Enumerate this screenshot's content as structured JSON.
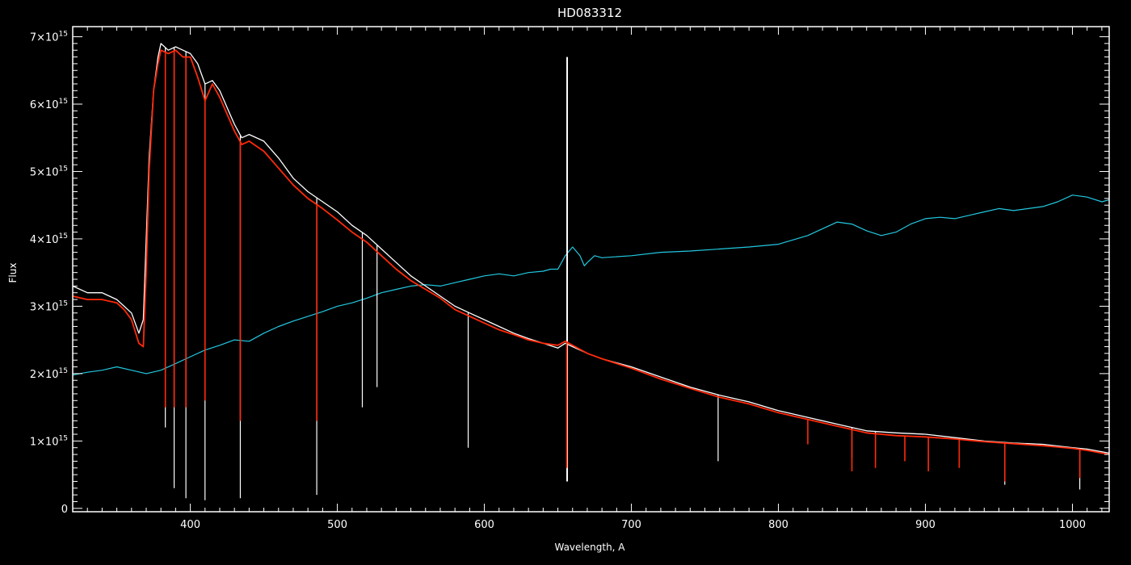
{
  "chart_data": {
    "type": "line",
    "title": "HD083312",
    "xlabel": "Wavelength, A",
    "ylabel": "Flux",
    "xlim": [
      320,
      1025
    ],
    "ylim": [
      -50000000000000.0,
      7150000000000000.0
    ],
    "x_ticks": [
      400,
      500,
      600,
      700,
      800,
      900,
      1000
    ],
    "x_tick_labels": [
      "400",
      "500",
      "600",
      "700",
      "800",
      "900",
      "1000"
    ],
    "y_ticks": [
      0,
      1000000000000000.0,
      2000000000000000.0,
      3000000000000000.0,
      4000000000000000.0,
      5000000000000000.0,
      6000000000000000.0,
      7000000000000000.0
    ],
    "y_tick_labels": [
      {
        "mantissa": "0",
        "exp": ""
      },
      {
        "mantissa": "1×10",
        "exp": "15"
      },
      {
        "mantissa": "2×10",
        "exp": "15"
      },
      {
        "mantissa": "3×10",
        "exp": "15"
      },
      {
        "mantissa": "4×10",
        "exp": "15"
      },
      {
        "mantissa": "5×10",
        "exp": "15"
      },
      {
        "mantissa": "6×10",
        "exp": "15"
      },
      {
        "mantissa": "7×10",
        "exp": "15"
      }
    ],
    "grid": false,
    "colors": {
      "background": "#000000",
      "axes": "#ffffff",
      "observed": "#ffffff",
      "model": "#ff2a0a",
      "comparison": "#22c8e0"
    },
    "series": [
      {
        "key": "observed",
        "x": [
          320,
          330,
          340,
          350,
          360,
          365,
          368,
          370,
          372,
          375,
          378,
          380,
          385,
          390,
          395,
          400,
          405,
          410,
          415,
          420,
          425,
          430,
          435,
          440,
          450,
          460,
          470,
          480,
          490,
          500,
          510,
          520,
          530,
          540,
          550,
          560,
          570,
          580,
          590,
          600,
          610,
          620,
          630,
          640,
          650,
          655,
          660,
          670,
          680,
          700,
          720,
          740,
          760,
          780,
          800,
          820,
          840,
          860,
          880,
          900,
          920,
          940,
          960,
          980,
          1000,
          1010,
          1025
        ],
        "y": [
          3300000000000000.0,
          3200000000000000.0,
          3200000000000000.0,
          3100000000000000.0,
          2900000000000000.0,
          2600000000000000.0,
          2800000000000000.0,
          4000000000000000.0,
          5200000000000000.0,
          6200000000000000.0,
          6700000000000000.0,
          6900000000000000.0,
          6800000000000000.0,
          6850000000000000.0,
          6800000000000000.0,
          6750000000000000.0,
          6600000000000000.0,
          6300000000000000.0,
          6350000000000000.0,
          6200000000000000.0,
          5950000000000000.0,
          5700000000000000.0,
          5500000000000000.0,
          5550000000000000.0,
          5450000000000000.0,
          5200000000000000.0,
          4900000000000000.0,
          4700000000000000.0,
          4550000000000000.0,
          4400000000000000.0,
          4200000000000000.0,
          4050000000000000.0,
          3850000000000000.0,
          3650000000000000.0,
          3450000000000000.0,
          3300000000000000.0,
          3150000000000000.0,
          3000000000000000.0,
          2900000000000000.0,
          2800000000000000.0,
          2700000000000000.0,
          2600000000000000.0,
          2520000000000000.0,
          2450000000000000.0,
          2380000000000000.0,
          2450000000000000.0,
          2400000000000000.0,
          2300000000000000.0,
          2220000000000000.0,
          2100000000000000.0,
          1950000000000000.0,
          1800000000000000.0,
          1680000000000000.0,
          1580000000000000.0,
          1450000000000000.0,
          1350000000000000.0,
          1250000000000000.0,
          1150000000000000.0,
          1120000000000000.0,
          1100000000000000.0,
          1050000000000000.0,
          1000000000000000.0,
          970000000000000.0,
          950000000000000.0,
          900000000000000.0,
          880000000000000.0,
          820000000000000.0
        ]
      },
      {
        "key": "model",
        "x": [
          320,
          330,
          340,
          350,
          355,
          360,
          365,
          368,
          370,
          372,
          375,
          378,
          380,
          385,
          390,
          395,
          400,
          405,
          410,
          415,
          420,
          425,
          430,
          435,
          440,
          450,
          460,
          470,
          480,
          490,
          500,
          510,
          520,
          530,
          540,
          550,
          560,
          570,
          580,
          590,
          600,
          610,
          620,
          630,
          640,
          650,
          655,
          660,
          670,
          680,
          700,
          720,
          740,
          760,
          780,
          800,
          820,
          840,
          860,
          880,
          900,
          920,
          940,
          960,
          980,
          1000,
          1010,
          1025
        ],
        "y": [
          3150000000000000.0,
          3100000000000000.0,
          3100000000000000.0,
          3050000000000000.0,
          2950000000000000.0,
          2800000000000000.0,
          2450000000000000.0,
          2400000000000000.0,
          3500000000000000.0,
          5000000000000000.0,
          6200000000000000.0,
          6600000000000000.0,
          6800000000000000.0,
          6750000000000000.0,
          6800000000000000.0,
          6700000000000000.0,
          6700000000000000.0,
          6400000000000000.0,
          6050000000000000.0,
          6300000000000000.0,
          6100000000000000.0,
          5850000000000000.0,
          5600000000000000.0,
          5400000000000000.0,
          5450000000000000.0,
          5300000000000000.0,
          5050000000000000.0,
          4800000000000000.0,
          4600000000000000.0,
          4450000000000000.0,
          4280000000000000.0,
          4100000000000000.0,
          3950000000000000.0,
          3750000000000000.0,
          3550000000000000.0,
          3380000000000000.0,
          3250000000000000.0,
          3120000000000000.0,
          2950000000000000.0,
          2850000000000000.0,
          2750000000000000.0,
          2650000000000000.0,
          2580000000000000.0,
          2500000000000000.0,
          2450000000000000.0,
          2420000000000000.0,
          2480000000000000.0,
          2420000000000000.0,
          2300000000000000.0,
          2220000000000000.0,
          2080000000000000.0,
          1920000000000000.0,
          1780000000000000.0,
          1650000000000000.0,
          1550000000000000.0,
          1420000000000000.0,
          1320000000000000.0,
          1220000000000000.0,
          1120000000000000.0,
          1080000000000000.0,
          1060000000000000.0,
          1030000000000000.0,
          990000000000000.0,
          960000000000000.0,
          930000000000000.0,
          890000000000000.0,
          860000000000000.0,
          800000000000000.0
        ]
      },
      {
        "key": "comparison",
        "x": [
          320,
          330,
          340,
          350,
          360,
          370,
          380,
          390,
          400,
          410,
          420,
          430,
          440,
          450,
          460,
          470,
          480,
          490,
          500,
          510,
          520,
          530,
          540,
          550,
          560,
          570,
          580,
          590,
          600,
          610,
          620,
          630,
          640,
          645,
          650,
          655,
          660,
          665,
          668,
          670,
          675,
          680,
          700,
          720,
          740,
          760,
          780,
          800,
          820,
          840,
          850,
          860,
          870,
          880,
          890,
          900,
          910,
          920,
          930,
          940,
          950,
          960,
          970,
          980,
          990,
          1000,
          1010,
          1020,
          1025
        ],
        "y": [
          1980000000000000.0,
          2020000000000000.0,
          2050000000000000.0,
          2100000000000000.0,
          2050000000000000.0,
          2000000000000000.0,
          2050000000000000.0,
          2150000000000000.0,
          2250000000000000.0,
          2350000000000000.0,
          2420000000000000.0,
          2500000000000000.0,
          2480000000000000.0,
          2600000000000000.0,
          2700000000000000.0,
          2780000000000000.0,
          2850000000000000.0,
          2920000000000000.0,
          3000000000000000.0,
          3050000000000000.0,
          3120000000000000.0,
          3200000000000000.0,
          3250000000000000.0,
          3300000000000000.0,
          3320000000000000.0,
          3300000000000000.0,
          3350000000000000.0,
          3400000000000000.0,
          3450000000000000.0,
          3480000000000000.0,
          3450000000000000.0,
          3500000000000000.0,
          3520000000000000.0,
          3550000000000000.0,
          3550000000000000.0,
          3750000000000000.0,
          3880000000000000.0,
          3750000000000000.0,
          3600000000000000.0,
          3650000000000000.0,
          3750000000000000.0,
          3720000000000000.0,
          3750000000000000.0,
          3800000000000000.0,
          3820000000000000.0,
          3850000000000000.0,
          3880000000000000.0,
          3920000000000000.0,
          4050000000000000.0,
          4250000000000000.0,
          4220000000000000.0,
          4120000000000000.0,
          4050000000000000.0,
          4100000000000000.0,
          4220000000000000.0,
          4300000000000000.0,
          4320000000000000.0,
          4300000000000000.0,
          4350000000000000.0,
          4400000000000000.0,
          4450000000000000.0,
          4420000000000000.0,
          4450000000000000.0,
          4480000000000000.0,
          4550000000000000.0,
          4650000000000000.0,
          4620000000000000.0,
          4550000000000000.0,
          4580000000000000.0
        ]
      }
    ],
    "observed_absorption_lines": [
      {
        "x": 383,
        "depth": 1200000000000000.0
      },
      {
        "x": 389,
        "depth": 300000000000000.0
      },
      {
        "x": 397,
        "depth": 150000000000000.0
      },
      {
        "x": 410,
        "depth": 120000000000000.0
      },
      {
        "x": 434,
        "depth": 150000000000000.0
      },
      {
        "x": 486,
        "depth": 200000000000000.0
      },
      {
        "x": 517,
        "depth": 1500000000000000.0
      },
      {
        "x": 527,
        "depth": 1800000000000000.0
      },
      {
        "x": 589,
        "depth": 900000000000000.0
      },
      {
        "x": 759,
        "depth": 700000000000000.0
      },
      {
        "x": 850,
        "depth": 750000000000000.0
      },
      {
        "x": 866,
        "depth": 720000000000000.0
      },
      {
        "x": 954,
        "depth": 350000000000000.0
      },
      {
        "x": 1005,
        "depth": 280000000000000.0
      }
    ],
    "model_absorption_lines": [
      {
        "x": 383,
        "depth": 1500000000000000.0
      },
      {
        "x": 389,
        "depth": 1500000000000000.0
      },
      {
        "x": 397,
        "depth": 1500000000000000.0
      },
      {
        "x": 410,
        "depth": 1600000000000000.0
      },
      {
        "x": 434,
        "depth": 1300000000000000.0
      },
      {
        "x": 486,
        "depth": 1300000000000000.0
      },
      {
        "x": 656,
        "depth": 600000000000000.0
      },
      {
        "x": 820,
        "depth": 950000000000000.0
      },
      {
        "x": 850,
        "depth": 550000000000000.0
      },
      {
        "x": 866,
        "depth": 600000000000000.0
      },
      {
        "x": 886,
        "depth": 700000000000000.0
      },
      {
        "x": 902,
        "depth": 550000000000000.0
      },
      {
        "x": 923,
        "depth": 600000000000000.0
      },
      {
        "x": 954,
        "depth": 400000000000000.0
      },
      {
        "x": 1005,
        "depth": 450000000000000.0
      }
    ],
    "observed_emission_spike": {
      "x": 656.3,
      "y_max": 6700000000000000.0,
      "y_min": 400000000000000.0
    }
  }
}
